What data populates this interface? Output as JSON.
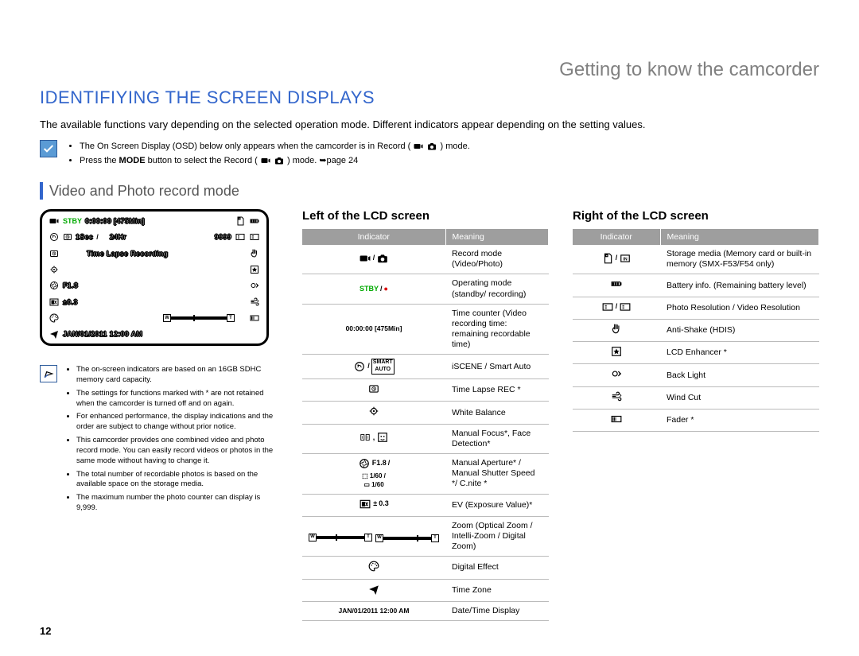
{
  "page_number": "12",
  "chapter_title": "Getting to know the camcorder",
  "section_title": "IDENTIFIYING THE SCREEN DISPLAYS",
  "intro": "The available functions vary depending on the selected operation mode. Different indicators appear depending on the setting values.",
  "info_bullets": [
    "The On Screen Display (OSD) below only appears when the camcorder is in Record (",
    ") mode.",
    "Press the MODE button to select the Record (",
    ") mode. ➥page 24"
  ],
  "subsection": "Video and Photo record mode",
  "lcd": {
    "stby": "STBY",
    "counter": "0:00:00",
    "remain": "[475Min]",
    "sec": "1Sec",
    "slash": "/",
    "hr": "24Hr",
    "count_photos": "9999",
    "timelapse": "Time Lapse Recording",
    "fnum": "F1.8",
    "ev": "0.3",
    "datetime": "JAN/01/2011 12:00 AM",
    "w": "W",
    "t": "T"
  },
  "notes": [
    "The on-screen indicators are based on an 16GB SDHC memory card capacity.",
    "The settings for functions marked with * are not retained when the camcorder is turned off and on again.",
    "For enhanced performance, the display indications and the order are subject to change without prior notice.",
    "This camcorder provides one combined video and photo record mode. You can easily record videos or photos in the same mode without having to change it.",
    "The total number of recordable photos is based on the available space on the storage media.",
    "The maximum number the photo counter can display is 9,999."
  ],
  "left_table": {
    "title": "Left of the LCD screen",
    "head_indicator": "Indicator",
    "head_meaning": "Meaning",
    "rows": [
      {
        "icon": "video-photo",
        "label": "",
        "meaning": "Record mode (Video/Photo)"
      },
      {
        "icon": "stby-rec",
        "label": "STBY / ●",
        "meaning": "Operating mode (standby/ recording)"
      },
      {
        "icon": "",
        "label": "00:00:00 [475Min]",
        "meaning": "Time counter (Video recording time: remaining recordable time)"
      },
      {
        "icon": "scene",
        "label": "/ SMART AUTO",
        "meaning": "iSCENE / Smart Auto"
      },
      {
        "icon": "timelapse",
        "label": "",
        "meaning": "Time Lapse REC *"
      },
      {
        "icon": "wb",
        "label": "",
        "meaning": "White Balance"
      },
      {
        "icon": "focus-face",
        "label": "",
        "meaning": "Manual Focus*, Face Detection*"
      },
      {
        "icon": "aperture",
        "label": "F1.8 /  1/60 /  1/60",
        "meaning": "Manual Aperture* / Manual Shutter Speed */ C.nite *"
      },
      {
        "icon": "ev",
        "label": "± 0.3",
        "meaning": "EV (Exposure Value)*"
      },
      {
        "icon": "zoom",
        "label": "",
        "meaning": "Zoom (Optical Zoom / Intelli-Zoom / Digital Zoom)"
      },
      {
        "icon": "palette",
        "label": "",
        "meaning": "Digital Effect"
      },
      {
        "icon": "clock",
        "label": "",
        "meaning": "Time Zone"
      },
      {
        "icon": "",
        "label": "JAN/01/2011 12:00 AM",
        "meaning": "Date/Time Display"
      }
    ]
  },
  "right_table": {
    "title": "Right of the LCD screen",
    "head_indicator": "Indicator",
    "head_meaning": "Meaning",
    "rows": [
      {
        "icon": "storage",
        "label": "",
        "meaning": "Storage media (Memory card or built-in memory (SMX-F53/F54 only)"
      },
      {
        "icon": "battery",
        "label": "",
        "meaning": "Battery info. (Remaining battery level)"
      },
      {
        "icon": "resolution",
        "label": "",
        "meaning": "Photo Resolution / Video Resolution"
      },
      {
        "icon": "hand",
        "label": "",
        "meaning": "Anti-Shake (HDIS)"
      },
      {
        "icon": "lcd-enh",
        "label": "",
        "meaning": "LCD Enhancer *"
      },
      {
        "icon": "backlight",
        "label": "",
        "meaning": "Back Light"
      },
      {
        "icon": "windcut",
        "label": "",
        "meaning": "Wind Cut"
      },
      {
        "icon": "fader",
        "label": "",
        "meaning": "Fader *"
      }
    ]
  }
}
